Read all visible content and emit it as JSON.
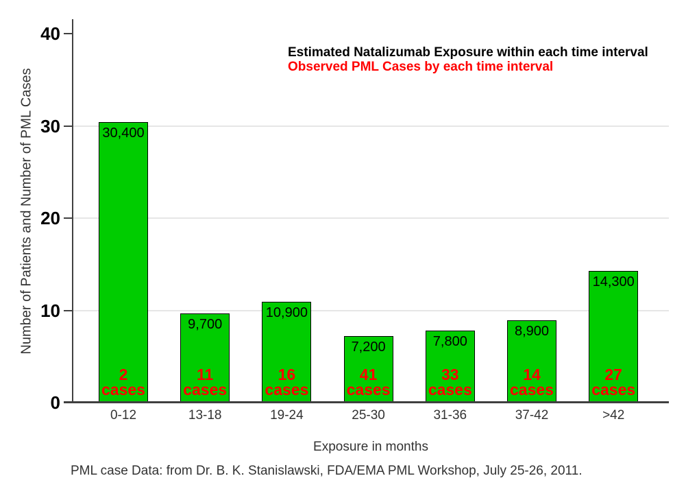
{
  "chart_data": {
    "type": "bar",
    "title": "",
    "xlabel": "Exposure in months",
    "ylabel": "Number of Patients and Number of PML Cases",
    "categories": [
      "0-12",
      "13-18",
      "19-24",
      "25-30",
      "31-36",
      "37-42",
      ">42"
    ],
    "series": [
      {
        "name": "Estimated Natalizumab Exposure within each time interval",
        "color": "#00CC00",
        "values": [
          30400,
          9700,
          10900,
          7200,
          7800,
          8900,
          14300
        ],
        "value_labels": [
          "30,400",
          "9,700",
          "10,900",
          "7,200",
          "7,800",
          "8,900",
          "14,300"
        ],
        "note": "bar heights plotted as value/1000 on the y axis"
      },
      {
        "name": "Observed PML Cases by each time interval",
        "color": "#FF0000",
        "values": [
          2,
          11,
          16,
          41,
          33,
          14,
          27
        ],
        "value_labels": [
          "2 cases",
          "11 cases",
          "16 cases",
          "41 cases",
          "33 cases",
          "14 cases",
          "27 cases"
        ]
      }
    ],
    "cases_word": "cases",
    "y_ticks": [
      0,
      10,
      20,
      30,
      40
    ],
    "ylim": [
      0,
      40
    ],
    "grid_ticks": [
      10,
      20,
      30
    ],
    "grid": true,
    "legend_position": "top-right"
  },
  "footer": {
    "source_note": "PML case Data: from Dr. B. K. Stanislawski, FDA/EMA PML Workshop, July 25-26, 2011."
  },
  "colors": {
    "bar_fill": "#00CC00",
    "bar_border": "#000000",
    "cases_text": "#FF0000",
    "legend_exposure_text": "#000000",
    "legend_cases_text": "#FF0000",
    "grid": "#E6E6E6",
    "axis": "#404040",
    "background": "#FFFFFF"
  }
}
